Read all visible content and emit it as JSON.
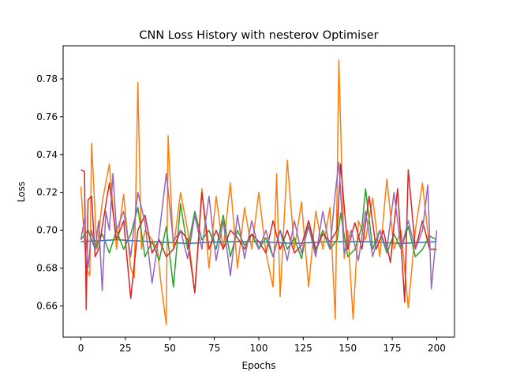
{
  "chart_data": {
    "type": "line",
    "title": "CNN Loss History with nesterov Optimiser",
    "xlabel": "Epochs",
    "ylabel": "Loss",
    "xlim": [
      -10,
      210
    ],
    "ylim": [
      0.6435,
      0.7975
    ],
    "x_ticks": [
      0,
      25,
      50,
      75,
      100,
      125,
      150,
      175,
      200
    ],
    "y_ticks": [
      0.66,
      0.68,
      0.7,
      0.72,
      0.74,
      0.76,
      0.78
    ],
    "grid": false,
    "legend": "none",
    "series": [
      {
        "color": "#1f77b4",
        "x": [
          0,
          20,
          40,
          60,
          80,
          100,
          120,
          140,
          160,
          180,
          200
        ],
        "values": [
          0.694,
          0.695,
          0.694,
          0.693,
          0.694,
          0.694,
          0.693,
          0.694,
          0.694,
          0.693,
          0.694
        ]
      },
      {
        "color": "#ff7f0e",
        "x": [
          0,
          3,
          5,
          6,
          9,
          12,
          16,
          20,
          24,
          28,
          30,
          32,
          34,
          36,
          40,
          43,
          45,
          48,
          49,
          52,
          56,
          60,
          64,
          68,
          72,
          76,
          80,
          84,
          88,
          92,
          96,
          100,
          104,
          108,
          110,
          112,
          116,
          120,
          124,
          128,
          132,
          136,
          140,
          143,
          145,
          148,
          150,
          153,
          156,
          160,
          164,
          168,
          172,
          176,
          180,
          184,
          188,
          192,
          196,
          200
        ],
        "values": [
          0.723,
          0.68,
          0.676,
          0.746,
          0.69,
          0.715,
          0.735,
          0.69,
          0.719,
          0.68,
          0.675,
          0.778,
          0.69,
          0.7,
          0.695,
          0.69,
          0.672,
          0.65,
          0.75,
          0.69,
          0.72,
          0.7,
          0.667,
          0.722,
          0.68,
          0.718,
          0.69,
          0.725,
          0.68,
          0.712,
          0.69,
          0.72,
          0.688,
          0.67,
          0.73,
          0.665,
          0.737,
          0.69,
          0.715,
          0.67,
          0.71,
          0.69,
          0.712,
          0.653,
          0.79,
          0.685,
          0.7,
          0.653,
          0.705,
          0.695,
          0.717,
          0.686,
          0.727,
          0.69,
          0.7,
          0.659,
          0.7,
          0.725,
          0.69,
          0.69
        ]
      },
      {
        "color": "#2ca02c",
        "x": [
          0,
          4,
          8,
          12,
          16,
          20,
          24,
          28,
          32,
          36,
          40,
          44,
          48,
          52,
          56,
          60,
          64,
          68,
          72,
          76,
          80,
          84,
          88,
          92,
          96,
          100,
          104,
          108,
          112,
          116,
          120,
          124,
          128,
          132,
          136,
          140,
          144,
          146,
          150,
          154,
          158,
          160,
          164,
          168,
          172,
          176,
          180,
          184,
          188,
          192,
          196,
          200
        ],
        "values": [
          0.695,
          0.7,
          0.69,
          0.698,
          0.688,
          0.7,
          0.69,
          0.698,
          0.712,
          0.686,
          0.694,
          0.684,
          0.702,
          0.67,
          0.714,
          0.69,
          0.71,
          0.695,
          0.7,
          0.69,
          0.708,
          0.686,
          0.7,
          0.692,
          0.698,
          0.69,
          0.696,
          0.686,
          0.7,
          0.69,
          0.696,
          0.685,
          0.705,
          0.688,
          0.7,
          0.69,
          0.695,
          0.709,
          0.686,
          0.69,
          0.702,
          0.722,
          0.69,
          0.7,
          0.688,
          0.698,
          0.69,
          0.702,
          0.686,
          0.69,
          0.697,
          0.695
        ]
      },
      {
        "color": "#d62728",
        "x": [
          0,
          2,
          3,
          4,
          6,
          8,
          10,
          12,
          16,
          20,
          24,
          28,
          32,
          36,
          40,
          44,
          48,
          52,
          56,
          60,
          64,
          68,
          72,
          76,
          80,
          84,
          88,
          92,
          96,
          100,
          104,
          108,
          112,
          116,
          120,
          124,
          128,
          132,
          136,
          140,
          144,
          146,
          150,
          154,
          158,
          162,
          166,
          170,
          174,
          178,
          182,
          184,
          188,
          192,
          196,
          200
        ],
        "values": [
          0.732,
          0.731,
          0.658,
          0.716,
          0.718,
          0.686,
          0.69,
          0.702,
          0.725,
          0.695,
          0.705,
          0.664,
          0.7,
          0.708,
          0.688,
          0.695,
          0.686,
          0.69,
          0.7,
          0.695,
          0.667,
          0.72,
          0.69,
          0.7,
          0.69,
          0.7,
          0.696,
          0.69,
          0.698,
          0.694,
          0.688,
          0.705,
          0.69,
          0.7,
          0.688,
          0.692,
          0.705,
          0.69,
          0.698,
          0.694,
          0.7,
          0.735,
          0.69,
          0.704,
          0.69,
          0.718,
          0.69,
          0.7,
          0.683,
          0.722,
          0.662,
          0.732,
          0.69,
          0.705,
          0.69,
          0.69
        ]
      },
      {
        "color": "#9467bd",
        "x": [
          0,
          2,
          4,
          6,
          8,
          10,
          12,
          14,
          16,
          18,
          20,
          24,
          28,
          32,
          36,
          40,
          44,
          48,
          52,
          56,
          60,
          64,
          68,
          72,
          76,
          80,
          84,
          88,
          92,
          96,
          100,
          104,
          108,
          112,
          116,
          120,
          124,
          128,
          132,
          136,
          140,
          143,
          145,
          148,
          152,
          156,
          160,
          164,
          168,
          172,
          176,
          180,
          184,
          188,
          192,
          195,
          197,
          200
        ],
        "values": [
          0.695,
          0.706,
          0.68,
          0.7,
          0.69,
          0.705,
          0.668,
          0.71,
          0.7,
          0.73,
          0.7,
          0.71,
          0.686,
          0.72,
          0.704,
          0.672,
          0.698,
          0.73,
          0.694,
          0.7,
          0.685,
          0.708,
          0.69,
          0.718,
          0.684,
          0.705,
          0.676,
          0.708,
          0.685,
          0.705,
          0.69,
          0.7,
          0.686,
          0.7,
          0.684,
          0.705,
          0.688,
          0.702,
          0.686,
          0.71,
          0.69,
          0.72,
          0.736,
          0.688,
          0.7,
          0.684,
          0.71,
          0.686,
          0.7,
          0.69,
          0.72,
          0.69,
          0.705,
          0.69,
          0.7,
          0.724,
          0.669,
          0.7
        ]
      }
    ]
  }
}
